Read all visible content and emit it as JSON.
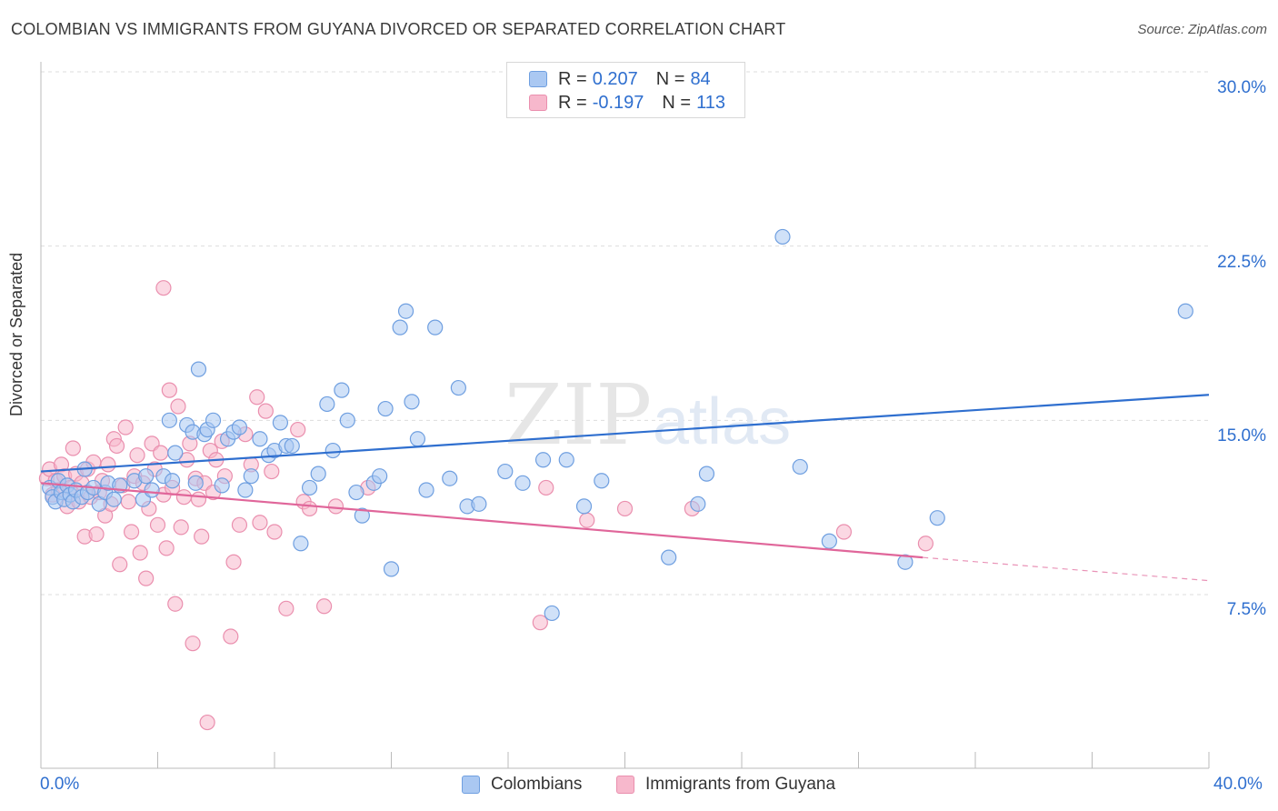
{
  "title": "COLOMBIAN VS IMMIGRANTS FROM GUYANA DIVORCED OR SEPARATED CORRELATION CHART",
  "source": "Source: ZipAtlas.com",
  "watermark": {
    "main": "ZIP",
    "sub": "atlas"
  },
  "legend": {
    "colombians": {
      "r_label": "R =",
      "r_value": "0.207",
      "n_label": "N =",
      "n_value": "84"
    },
    "guyana": {
      "r_label": "R =",
      "r_value": "-0.197",
      "n_label": "N =",
      "n_value": "113"
    }
  },
  "colors": {
    "blue_fill": "#aac8f2",
    "blue_stroke": "#6f9fe0",
    "blue_line": "#2f6fcf",
    "pink_fill": "#f7b8cc",
    "pink_stroke": "#ea8fae",
    "pink_line": "#e0669a",
    "grid": "#dddddd",
    "axis_text": "#2f6fcf"
  },
  "chart_data": {
    "type": "scatter",
    "title": "COLOMBIAN VS IMMIGRANTS FROM GUYANA DIVORCED OR SEPARATED CORRELATION CHART",
    "xlabel": "",
    "ylabel": "Divorced or Separated",
    "xlim": [
      0,
      40
    ],
    "ylim": [
      0,
      31
    ],
    "x_tick_labels": [
      "0.0%",
      "40.0%"
    ],
    "y_tick_labels": [
      "7.5%",
      "15.0%",
      "22.5%",
      "30.0%"
    ],
    "y_ticks": [
      7.5,
      15.0,
      22.5,
      30.0
    ],
    "grid": true,
    "legend_placement": "top-center",
    "series": [
      {
        "name": "Colombians",
        "color": "#6f9fe0",
        "trend": {
          "x": [
            0,
            40
          ],
          "y": [
            12.8,
            16.1
          ]
        },
        "points": [
          [
            0.3,
            12.1
          ],
          [
            0.4,
            11.7
          ],
          [
            0.5,
            11.5
          ],
          [
            0.6,
            12.4
          ],
          [
            0.7,
            11.9
          ],
          [
            0.8,
            11.6
          ],
          [
            0.9,
            12.2
          ],
          [
            1.0,
            11.8
          ],
          [
            1.1,
            11.5
          ],
          [
            1.2,
            12.0
          ],
          [
            1.4,
            11.7
          ],
          [
            1.5,
            12.9
          ],
          [
            1.6,
            11.9
          ],
          [
            1.8,
            12.1
          ],
          [
            2.0,
            11.4
          ],
          [
            2.2,
            11.9
          ],
          [
            2.3,
            12.3
          ],
          [
            2.5,
            11.6
          ],
          [
            2.7,
            12.2
          ],
          [
            3.2,
            12.4
          ],
          [
            3.5,
            11.6
          ],
          [
            3.6,
            12.6
          ],
          [
            3.8,
            12.0
          ],
          [
            4.2,
            12.6
          ],
          [
            4.4,
            15.0
          ],
          [
            4.5,
            12.4
          ],
          [
            4.6,
            13.6
          ],
          [
            5.0,
            14.8
          ],
          [
            5.2,
            14.5
          ],
          [
            5.3,
            12.3
          ],
          [
            5.4,
            17.2
          ],
          [
            5.6,
            14.4
          ],
          [
            5.7,
            14.6
          ],
          [
            5.9,
            15.0
          ],
          [
            6.2,
            12.2
          ],
          [
            6.4,
            14.2
          ],
          [
            6.6,
            14.5
          ],
          [
            6.8,
            14.7
          ],
          [
            7.0,
            12.0
          ],
          [
            7.2,
            12.6
          ],
          [
            7.5,
            14.2
          ],
          [
            7.8,
            13.5
          ],
          [
            8.0,
            13.7
          ],
          [
            8.2,
            14.9
          ],
          [
            8.4,
            13.9
          ],
          [
            8.6,
            13.9
          ],
          [
            8.9,
            9.7
          ],
          [
            9.2,
            12.1
          ],
          [
            9.5,
            12.7
          ],
          [
            9.8,
            15.7
          ],
          [
            10.0,
            13.7
          ],
          [
            10.3,
            16.3
          ],
          [
            10.5,
            15.0
          ],
          [
            10.8,
            11.9
          ],
          [
            11.0,
            10.9
          ],
          [
            11.4,
            12.3
          ],
          [
            11.6,
            12.6
          ],
          [
            11.8,
            15.5
          ],
          [
            12.0,
            8.6
          ],
          [
            12.3,
            19.0
          ],
          [
            12.5,
            19.7
          ],
          [
            12.7,
            15.8
          ],
          [
            12.9,
            14.2
          ],
          [
            13.2,
            12.0
          ],
          [
            13.5,
            19.0
          ],
          [
            14.0,
            12.5
          ],
          [
            14.3,
            16.4
          ],
          [
            14.6,
            11.3
          ],
          [
            15.0,
            11.4
          ],
          [
            15.9,
            12.8
          ],
          [
            16.5,
            12.3
          ],
          [
            17.2,
            13.3
          ],
          [
            17.5,
            6.7
          ],
          [
            18.0,
            13.3
          ],
          [
            18.6,
            11.3
          ],
          [
            19.2,
            12.4
          ],
          [
            21.5,
            9.1
          ],
          [
            22.5,
            11.4
          ],
          [
            22.8,
            12.7
          ],
          [
            25.4,
            22.9
          ],
          [
            26.0,
            13.0
          ],
          [
            27.0,
            9.8
          ],
          [
            29.6,
            8.9
          ],
          [
            30.7,
            10.8
          ],
          [
            39.2,
            19.7
          ]
        ]
      },
      {
        "name": "Immigrants from Guyana",
        "color": "#ea8fae",
        "trend": {
          "x": [
            0,
            30.2
          ],
          "y": [
            12.3,
            9.1
          ]
        },
        "trend_dashed": {
          "x": [
            30.2,
            40
          ],
          "y": [
            9.1,
            8.1
          ]
        },
        "points": [
          [
            0.2,
            12.5
          ],
          [
            0.3,
            12.9
          ],
          [
            0.4,
            11.8
          ],
          [
            0.5,
            12.4
          ],
          [
            0.6,
            12.0
          ],
          [
            0.7,
            13.1
          ],
          [
            0.8,
            12.6
          ],
          [
            0.9,
            11.3
          ],
          [
            1.0,
            12.1
          ],
          [
            1.1,
            13.8
          ],
          [
            1.2,
            12.7
          ],
          [
            1.3,
            11.5
          ],
          [
            1.4,
            12.3
          ],
          [
            1.5,
            10.0
          ],
          [
            1.6,
            12.9
          ],
          [
            1.7,
            11.7
          ],
          [
            1.8,
            13.2
          ],
          [
            1.9,
            10.1
          ],
          [
            2.0,
            11.9
          ],
          [
            2.1,
            12.4
          ],
          [
            2.2,
            10.9
          ],
          [
            2.3,
            13.1
          ],
          [
            2.4,
            11.4
          ],
          [
            2.5,
            14.2
          ],
          [
            2.6,
            13.9
          ],
          [
            2.7,
            8.8
          ],
          [
            2.8,
            12.2
          ],
          [
            2.9,
            14.7
          ],
          [
            3.0,
            11.5
          ],
          [
            3.1,
            10.2
          ],
          [
            3.2,
            12.6
          ],
          [
            3.3,
            13.5
          ],
          [
            3.4,
            9.3
          ],
          [
            3.5,
            12.3
          ],
          [
            3.6,
            8.2
          ],
          [
            3.7,
            11.2
          ],
          [
            3.8,
            14.0
          ],
          [
            3.9,
            12.9
          ],
          [
            4.0,
            10.5
          ],
          [
            4.1,
            13.6
          ],
          [
            4.2,
            11.8
          ],
          [
            4.3,
            9.5
          ],
          [
            4.4,
            16.3
          ],
          [
            4.5,
            12.1
          ],
          [
            4.6,
            7.1
          ],
          [
            4.7,
            15.6
          ],
          [
            4.8,
            10.4
          ],
          [
            4.9,
            11.7
          ],
          [
            5.0,
            13.3
          ],
          [
            5.1,
            14.0
          ],
          [
            5.2,
            5.4
          ],
          [
            5.3,
            12.5
          ],
          [
            5.4,
            11.6
          ],
          [
            5.5,
            10.0
          ],
          [
            5.6,
            12.3
          ],
          [
            5.7,
            2.0
          ],
          [
            5.8,
            13.7
          ],
          [
            5.9,
            11.9
          ],
          [
            6.0,
            13.3
          ],
          [
            6.2,
            14.1
          ],
          [
            6.3,
            12.6
          ],
          [
            6.5,
            5.7
          ],
          [
            6.6,
            8.9
          ],
          [
            6.8,
            10.5
          ],
          [
            7.0,
            14.4
          ],
          [
            7.2,
            13.1
          ],
          [
            7.4,
            16.0
          ],
          [
            7.5,
            10.6
          ],
          [
            7.7,
            15.4
          ],
          [
            7.9,
            12.8
          ],
          [
            8.0,
            10.2
          ],
          [
            8.4,
            6.9
          ],
          [
            8.8,
            14.6
          ],
          [
            9.0,
            11.5
          ],
          [
            9.2,
            11.2
          ],
          [
            9.7,
            7.0
          ],
          [
            10.1,
            11.3
          ],
          [
            4.2,
            20.7
          ],
          [
            11.2,
            12.1
          ],
          [
            17.1,
            6.3
          ],
          [
            17.3,
            12.1
          ],
          [
            18.7,
            10.7
          ],
          [
            20.0,
            11.2
          ],
          [
            22.3,
            11.2
          ],
          [
            27.5,
            10.2
          ],
          [
            30.3,
            9.7
          ]
        ]
      }
    ]
  },
  "bottom_legend": {
    "colombians": "Colombians",
    "guyana": "Immigrants from Guyana"
  }
}
